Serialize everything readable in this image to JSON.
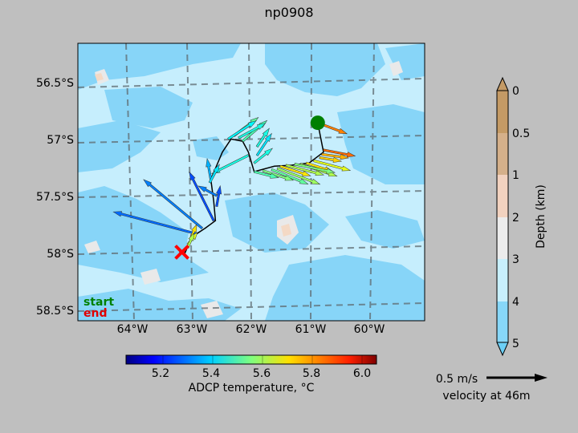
{
  "title": "np0908",
  "colors": {
    "figure_bg": "#bfbfbf",
    "ocean_deep": "#c6eefd",
    "ocean_shallow": "#87d5f8",
    "shelf": "#e9e9e9",
    "bank": "#f4d9c5",
    "track": "#000000",
    "start_marker": "#008000",
    "end_marker": "#ff0000",
    "grid": "#5f6b70"
  },
  "chart_data": [
    {
      "type": "scatter",
      "subtype": "map-quiver",
      "map": {
        "lon_range": [
          -65.0,
          -59.0
        ],
        "lat_range": [
          -58.6,
          -56.05
        ],
        "x_ticks": [
          "64°W",
          "63°W",
          "62°W",
          "61°W",
          "60°W"
        ],
        "y_ticks": [
          "56.5°S",
          "57°S",
          "57.5°S",
          "58°S",
          "58.5°S"
        ],
        "gridlines": true,
        "gridline_style": "dashed"
      },
      "track": [
        [
          -60.85,
          -56.78
        ],
        [
          -60.75,
          -57.05
        ],
        [
          -61.0,
          -57.15
        ],
        [
          -61.3,
          -57.17
        ],
        [
          -61.6,
          -57.18
        ],
        [
          -61.95,
          -57.23
        ],
        [
          -62.05,
          -57.05
        ],
        [
          -62.15,
          -56.95
        ],
        [
          -62.35,
          -56.93
        ],
        [
          -62.5,
          -57.05
        ],
        [
          -62.7,
          -57.3
        ],
        [
          -62.65,
          -57.5
        ],
        [
          -62.62,
          -57.68
        ],
        [
          -62.8,
          -57.75
        ],
        [
          -63.0,
          -57.82
        ],
        [
          -63.1,
          -57.92
        ],
        [
          -63.15,
          -57.98
        ]
      ],
      "markers": {
        "start": {
          "lon": -60.85,
          "lat": -56.78,
          "label": "start"
        },
        "end": {
          "lon": -63.2,
          "lat": -57.97,
          "label": "end"
        }
      },
      "vectors": [
        {
          "lon": -60.85,
          "lat": -56.78,
          "u": 0.24,
          "v": -0.09,
          "temp": 5.8
        },
        {
          "lon": -60.75,
          "lat": -57.03,
          "u": 0.26,
          "v": -0.05,
          "temp": 5.82
        },
        {
          "lon": -60.78,
          "lat": -57.07,
          "u": 0.22,
          "v": -0.03,
          "temp": 5.75
        },
        {
          "lon": -60.82,
          "lat": -57.1,
          "u": 0.18,
          "v": -0.03,
          "temp": 5.72
        },
        {
          "lon": -60.92,
          "lat": -57.13,
          "u": 0.3,
          "v": -0.08,
          "temp": 5.65
        },
        {
          "lon": -61.05,
          "lat": -57.15,
          "u": 0.22,
          "v": -0.07,
          "temp": 5.7
        },
        {
          "lon": -61.15,
          "lat": -57.16,
          "u": 0.3,
          "v": -0.1,
          "temp": 5.6
        },
        {
          "lon": -61.25,
          "lat": -57.16,
          "u": 0.33,
          "v": -0.07,
          "temp": 5.55
        },
        {
          "lon": -61.4,
          "lat": -57.17,
          "u": 0.31,
          "v": -0.08,
          "temp": 5.6
        },
        {
          "lon": -61.5,
          "lat": -57.18,
          "u": 0.25,
          "v": -0.08,
          "temp": 5.7
        },
        {
          "lon": -61.55,
          "lat": -57.2,
          "u": 0.35,
          "v": -0.13,
          "temp": 5.58
        },
        {
          "lon": -61.65,
          "lat": -57.21,
          "u": 0.3,
          "v": -0.12,
          "temp": 5.52
        },
        {
          "lon": -61.8,
          "lat": -57.22,
          "u": 0.25,
          "v": -0.08,
          "temp": 5.55
        },
        {
          "lon": -61.95,
          "lat": -57.23,
          "u": 0.2,
          "v": -0.05,
          "temp": 5.5
        },
        {
          "lon": -61.95,
          "lat": -57.15,
          "u": 0.15,
          "v": 0.12,
          "temp": 5.45
        },
        {
          "lon": -61.9,
          "lat": -57.08,
          "u": 0.12,
          "v": 0.18,
          "temp": 5.4
        },
        {
          "lon": -61.9,
          "lat": -57.0,
          "u": 0.1,
          "v": 0.15,
          "temp": 5.45
        },
        {
          "lon": -62.15,
          "lat": -56.95,
          "u": 0.2,
          "v": 0.17,
          "temp": 5.5
        },
        {
          "lon": -62.22,
          "lat": -56.92,
          "u": 0.22,
          "v": 0.12,
          "temp": 5.45
        },
        {
          "lon": -62.3,
          "lat": -56.9,
          "u": 0.2,
          "v": 0.15,
          "temp": 5.52
        },
        {
          "lon": -62.4,
          "lat": -56.93,
          "u": 0.23,
          "v": 0.15,
          "temp": 5.42
        },
        {
          "lon": -62.05,
          "lat": -57.08,
          "u": -0.3,
          "v": -0.15,
          "temp": 5.45
        },
        {
          "lon": -62.7,
          "lat": -57.3,
          "u": -0.03,
          "v": 0.17,
          "temp": 5.35
        },
        {
          "lon": -62.72,
          "lat": -57.33,
          "u": 0.08,
          "v": 0.15,
          "temp": 5.4
        },
        {
          "lon": -62.6,
          "lat": -57.45,
          "u": -0.15,
          "v": 0.08,
          "temp": 5.3
        },
        {
          "lon": -62.6,
          "lat": -57.55,
          "u": 0.03,
          "v": 0.17,
          "temp": 5.25
        },
        {
          "lon": -62.65,
          "lat": -57.68,
          "u": -0.2,
          "v": 0.4,
          "temp": 5.25
        },
        {
          "lon": -62.85,
          "lat": -57.75,
          "u": -0.48,
          "v": 0.4,
          "temp": 5.3
        },
        {
          "lon": -62.95,
          "lat": -57.8,
          "u": -0.68,
          "v": 0.18,
          "temp": 5.28
        },
        {
          "lon": -63.05,
          "lat": -57.85,
          "u": 0.05,
          "v": 0.12,
          "temp": 5.7
        },
        {
          "lon": -63.1,
          "lat": -57.9,
          "u": 0.08,
          "v": 0.1,
          "temp": 5.65
        },
        {
          "lon": -63.1,
          "lat": -57.93,
          "u": 0.05,
          "v": 0.12,
          "temp": 5.6
        }
      ]
    },
    {
      "type": "heatmap",
      "role": "colorbar",
      "label": "ADCP temperature, °C",
      "range": [
        5.05,
        6.05
      ],
      "ticks": [
        "5.2",
        "5.4",
        "5.6",
        "5.8",
        "6.0"
      ],
      "tick_values": [
        5.2,
        5.4,
        5.6,
        5.8,
        6.0
      ],
      "colormap": "jet"
    },
    {
      "type": "heatmap",
      "role": "colorbar",
      "label": "Depth (km)",
      "ticks": [
        "0",
        "0.5",
        "1",
        "2",
        "3",
        "4",
        "5"
      ],
      "tick_values": [
        0,
        0.5,
        1,
        2,
        3,
        4,
        5
      ],
      "band_colors": [
        "#c49a65",
        "#d5b08a",
        "#f2d2bf",
        "#ececec",
        "#c8f0fd",
        "#87d7f8"
      ]
    }
  ],
  "velocity_key": {
    "label": "0.5 m/s",
    "caption": "velocity at 46m",
    "value_mps": 0.5
  }
}
